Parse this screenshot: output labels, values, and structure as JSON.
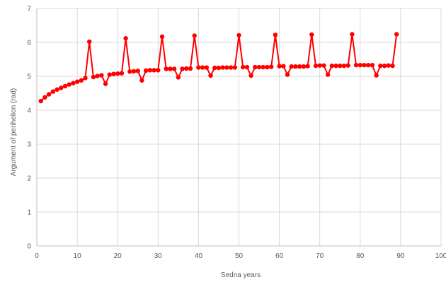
{
  "chart_data": {
    "type": "line",
    "xlabel": "Sedna years",
    "ylabel": "Argument of perihelion (rad)",
    "xlim": [
      0,
      100
    ],
    "ylim": [
      0,
      7
    ],
    "xticks": [
      "0",
      "10",
      "20",
      "30",
      "40",
      "50",
      "60",
      "70",
      "80",
      "90",
      "100"
    ],
    "yticks": [
      "0",
      "1",
      "2",
      "3",
      "4",
      "5",
      "6",
      "7"
    ],
    "grid": true,
    "legend": "none",
    "series": [
      {
        "color": "#ff0000",
        "x": [
          1,
          2,
          3,
          4,
          5,
          6,
          7,
          8,
          9,
          10,
          11,
          12,
          13,
          14,
          15,
          16,
          17,
          18,
          19,
          20,
          21,
          22,
          23,
          24,
          25,
          26,
          27,
          28,
          29,
          30,
          31,
          32,
          33,
          34,
          35,
          36,
          37,
          38,
          39,
          40,
          41,
          42,
          43,
          44,
          45,
          46,
          47,
          48,
          49,
          50,
          51,
          52,
          53,
          54,
          55,
          56,
          57,
          58,
          59,
          60,
          61,
          62,
          63,
          64,
          65,
          66,
          67,
          68,
          69,
          70,
          71,
          72,
          73,
          74,
          75,
          76,
          77,
          78,
          79,
          80,
          81,
          82,
          83,
          84,
          85,
          86,
          87,
          88,
          89
        ],
        "y": [
          4.27,
          4.38,
          4.47,
          4.55,
          4.61,
          4.66,
          4.71,
          4.76,
          4.8,
          4.84,
          4.88,
          4.95,
          6.02,
          4.98,
          5.01,
          5.03,
          4.78,
          5.05,
          5.07,
          5.08,
          5.09,
          6.12,
          5.14,
          5.15,
          5.16,
          4.88,
          5.17,
          5.18,
          5.18,
          5.18,
          6.17,
          5.22,
          5.22,
          5.22,
          4.97,
          5.22,
          5.23,
          5.23,
          6.2,
          5.26,
          5.26,
          5.26,
          5.02,
          5.25,
          5.25,
          5.26,
          5.26,
          5.26,
          5.26,
          6.21,
          5.27,
          5.27,
          5.02,
          5.27,
          5.27,
          5.27,
          5.27,
          5.28,
          6.22,
          5.3,
          5.3,
          5.05,
          5.29,
          5.29,
          5.29,
          5.29,
          5.3,
          6.23,
          5.31,
          5.32,
          5.32,
          5.05,
          5.31,
          5.31,
          5.31,
          5.31,
          5.32,
          6.24,
          5.33,
          5.33,
          5.33,
          5.33,
          5.33,
          5.03,
          5.31,
          5.31,
          5.32,
          5.31,
          6.24
        ]
      }
    ]
  }
}
